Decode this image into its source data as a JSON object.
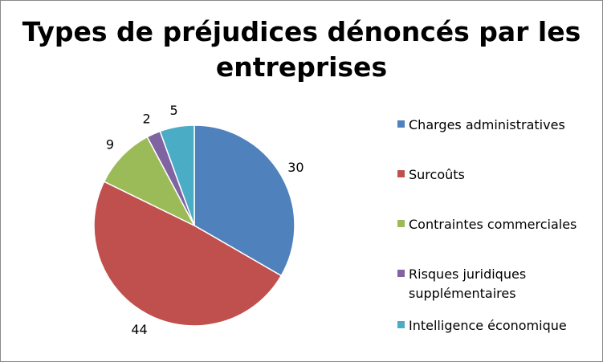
{
  "chart_data": {
    "type": "pie",
    "title": "Types de préjudices dénoncés par les entreprises",
    "categories": [
      "Charges administratives",
      "Surcoûts",
      "Contraintes commerciales",
      "Risques juridiques supplémentaires",
      "Intelligence économique"
    ],
    "values": [
      30,
      44,
      9,
      2,
      5
    ],
    "colors": [
      "#4F81BD",
      "#C0504D",
      "#9BBB59",
      "#8064A2",
      "#4BACC6"
    ],
    "data_labels": [
      "30",
      "44",
      "9",
      "2",
      "5"
    ],
    "legend_position": "right"
  }
}
